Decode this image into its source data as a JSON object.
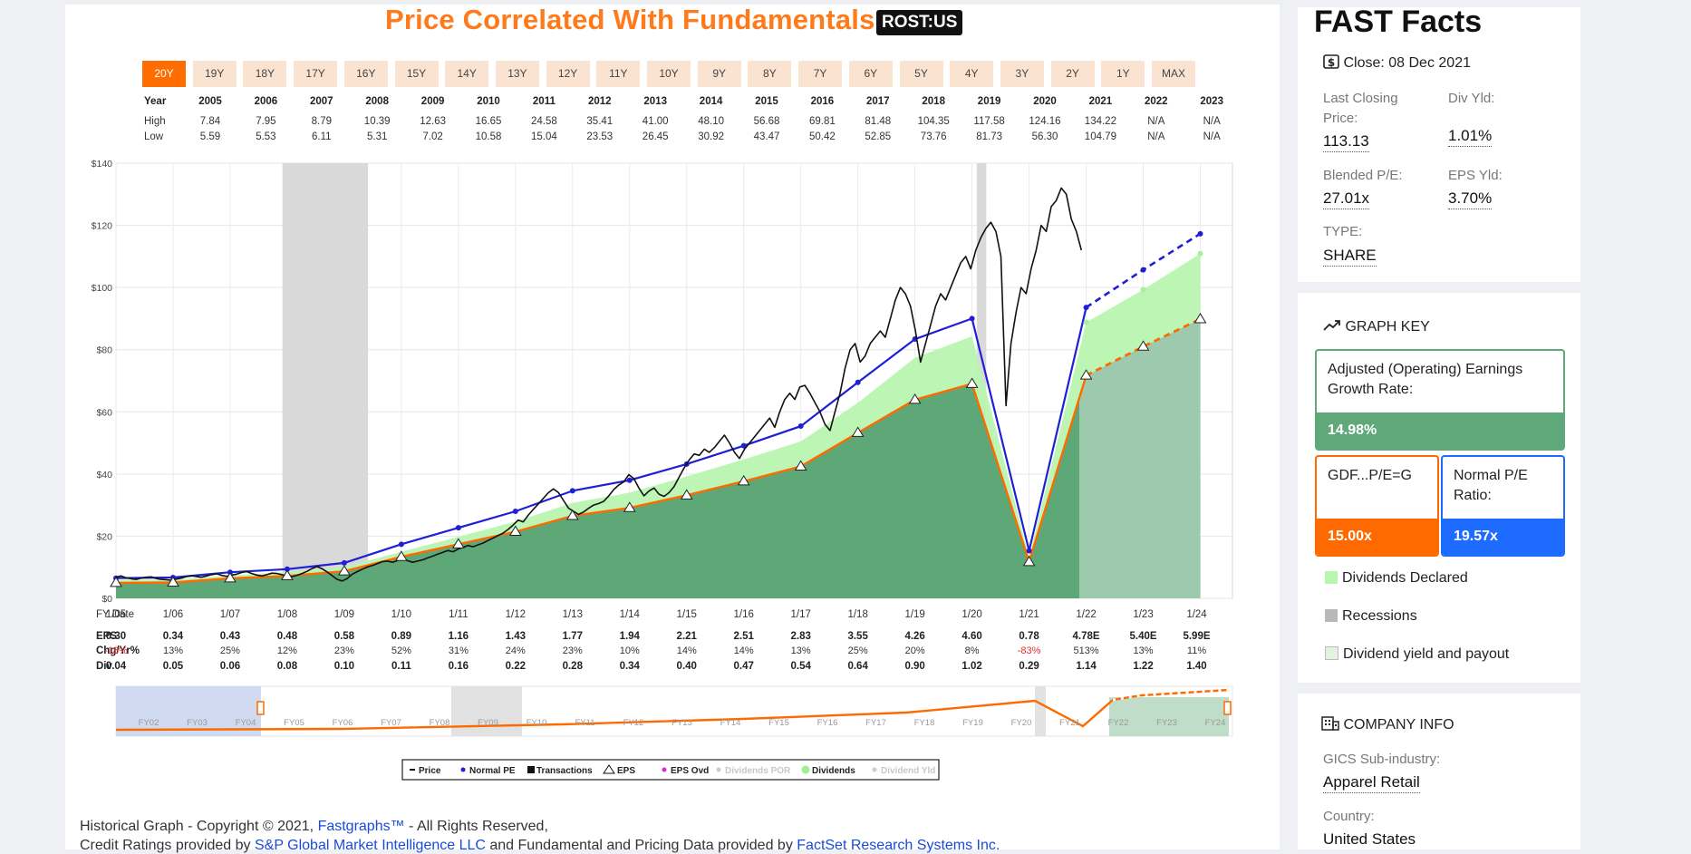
{
  "header": {
    "title": "Price Correlated With Fundamentals",
    "ticker": "ROST:US"
  },
  "range_buttons": [
    "20Y",
    "19Y",
    "18Y",
    "17Y",
    "16Y",
    "15Y",
    "14Y",
    "13Y",
    "12Y",
    "11Y",
    "10Y",
    "9Y",
    "8Y",
    "7Y",
    "6Y",
    "5Y",
    "4Y",
    "3Y",
    "2Y",
    "1Y",
    "MAX"
  ],
  "active_range": "20Y",
  "year_table": {
    "labels": {
      "year": "Year",
      "high": "High",
      "low": "Low"
    },
    "years": [
      "2005",
      "2006",
      "2007",
      "2008",
      "2009",
      "2010",
      "2011",
      "2012",
      "2013",
      "2014",
      "2015",
      "2016",
      "2017",
      "2018",
      "2019",
      "2020",
      "2021",
      "2022",
      "2023"
    ],
    "high": [
      "7.84",
      "7.95",
      "8.79",
      "10.39",
      "12.63",
      "16.65",
      "24.58",
      "35.41",
      "41.00",
      "48.10",
      "56.68",
      "69.81",
      "81.48",
      "104.35",
      "117.58",
      "124.16",
      "134.22",
      "N/A",
      "N/A"
    ],
    "low": [
      "5.59",
      "5.53",
      "6.11",
      "5.31",
      "7.02",
      "10.58",
      "15.04",
      "23.53",
      "26.45",
      "30.92",
      "43.47",
      "50.42",
      "52.85",
      "73.76",
      "81.73",
      "56.30",
      "104.79",
      "N/A",
      "N/A"
    ]
  },
  "fundamentals_table": {
    "labels": {
      "fy_date": "FY Date",
      "eps": "EPS",
      "chg": "Chg/Yr%",
      "div": "Div"
    },
    "fy_dates": [
      "1/05",
      "1/06",
      "1/07",
      "1/08",
      "1/09",
      "1/10",
      "1/11",
      "1/12",
      "1/13",
      "1/14",
      "1/15",
      "1/16",
      "1/17",
      "1/18",
      "1/19",
      "1/20",
      "1/21",
      "1/22",
      "1/23",
      "1/24"
    ],
    "eps": [
      "0.30",
      "0.34",
      "0.43",
      "0.48",
      "0.58",
      "0.89",
      "1.16",
      "1.43",
      "1.77",
      "1.94",
      "2.21",
      "2.51",
      "2.83",
      "3.55",
      "4.26",
      "4.60",
      "0.78",
      "4.78E",
      "5.40E",
      "5.99E"
    ],
    "chg": [
      "-18%",
      "13%",
      "25%",
      "12%",
      "23%",
      "52%",
      "31%",
      "24%",
      "23%",
      "10%",
      "14%",
      "14%",
      "13%",
      "25%",
      "20%",
      "8%",
      "-83%",
      "513%",
      "13%",
      "11%"
    ],
    "div": [
      "0.04",
      "0.05",
      "0.06",
      "0.08",
      "0.10",
      "0.11",
      "0.16",
      "0.22",
      "0.28",
      "0.34",
      "0.40",
      "0.47",
      "0.54",
      "0.64",
      "0.90",
      "1.02",
      "0.29",
      "1.14",
      "1.22",
      "1.40"
    ],
    "negative_color": "#e03030"
  },
  "chart_data": {
    "type": "line",
    "ylim": [
      0,
      140
    ],
    "y_ticks": [
      "$0",
      "$20",
      "$40",
      "$60",
      "$80",
      "$100",
      "$120",
      "$140"
    ],
    "x_dates": [
      "1/05",
      "1/06",
      "1/07",
      "1/08",
      "1/09",
      "1/10",
      "1/11",
      "1/12",
      "1/13",
      "1/14",
      "1/15",
      "1/16",
      "1/17",
      "1/18",
      "1/19",
      "1/20",
      "1/21",
      "1/22",
      "1/23",
      "1/24"
    ],
    "eps_value_line": [
      5.0,
      5.1,
      6.45,
      7.2,
      8.7,
      13.35,
      17.4,
      21.45,
      26.55,
      29.1,
      33.15,
      37.65,
      42.45,
      53.25,
      63.9,
      69.0,
      11.7,
      71.7,
      81.0,
      89.85
    ],
    "normal_pe_line": [
      6.5,
      6.7,
      8.4,
      9.4,
      11.4,
      17.4,
      22.7,
      28.0,
      34.6,
      38.0,
      43.2,
      49.1,
      55.4,
      69.5,
      83.4,
      90.0,
      15.3,
      93.6,
      105.7,
      117.3
    ],
    "dividend_top": [
      6.0,
      6.0,
      7.4,
      8.4,
      10.1,
      15.0,
      19.8,
      24.7,
      30.7,
      34.0,
      39.2,
      44.7,
      50.5,
      62.9,
      77.4,
      84.3,
      13.2,
      88.8,
      99.3,
      110.9
    ],
    "forecast_start_index": 17,
    "price_monthly": [
      6.8,
      7.2,
      6.6,
      6.3,
      6.1,
      6.5,
      6.8,
      6.9,
      6.4,
      6.1,
      6.0,
      5.8,
      6.2,
      6.5,
      7.0,
      7.3,
      7.0,
      6.8,
      7.2,
      7.6,
      7.9,
      7.4,
      7.1,
      7.5,
      7.8,
      8.3,
      8.6,
      8.0,
      7.5,
      7.2,
      7.6,
      8.1,
      8.0,
      7.6,
      7.2,
      7.0,
      7.4,
      8.0,
      8.7,
      9.6,
      10.2,
      9.5,
      8.5,
      7.3,
      6.1,
      5.6,
      6.4,
      7.8,
      8.6,
      9.4,
      10.1,
      10.6,
      11.2,
      11.8,
      12.0,
      11.6,
      12.2,
      12.8,
      12.1,
      11.6,
      12.0,
      12.4,
      13.0,
      13.6,
      14.2,
      14.8,
      15.4,
      15.0,
      15.8,
      16.4,
      17.0,
      16.6,
      17.2,
      17.8,
      18.6,
      19.4,
      20.2,
      21.0,
      22.2,
      23.6,
      25.2,
      24.6,
      26.8,
      28.6,
      30.4,
      32.2,
      34.0,
      35.2,
      34.0,
      31.5,
      29.0,
      28.0,
      27.0,
      27.8,
      29.0,
      30.0,
      30.5,
      31.2,
      33.0,
      35.0,
      36.5,
      37.5,
      39.8,
      38.5,
      35.5,
      33.0,
      34.5,
      35.5,
      33.5,
      32.8,
      34.0,
      36.0,
      39.0,
      42.0,
      44.5,
      46.5,
      46.0,
      48.0,
      47.0,
      48.5,
      50.5,
      52.5,
      50.0,
      47.0,
      45.0,
      48.0,
      50.0,
      52.0,
      54.0,
      56.0,
      58.0,
      55.0,
      60.0,
      64.0,
      66.0,
      64.0,
      68.0,
      68.5,
      66.0,
      63.0,
      60.0,
      56.0,
      54.0,
      60.0,
      66.0,
      74.0,
      80.0,
      82.0,
      76.0,
      78.0,
      82.0,
      84.0,
      86.0,
      84.0,
      90.0,
      96.0,
      100.0,
      98.0,
      94.0,
      86.0,
      76.0,
      82.0,
      88.0,
      94.0,
      98.0,
      96.0,
      100.0,
      104.0,
      108.0,
      110.0,
      106.0,
      112.0,
      116.0,
      119.0,
      121.0,
      118.0,
      110.0,
      62.0,
      82.0,
      92.0,
      100.0,
      98.0,
      106.0,
      112.0,
      120.0,
      118.0,
      126.0,
      128.0,
      132.0,
      130.0,
      122.0,
      118.0,
      112.0
    ],
    "price_start": "1/05",
    "price_end": "12/21",
    "recessions": [
      [
        "12/07",
        "6/09"
      ],
      [
        "2/20",
        "4/20"
      ]
    ],
    "legend": [
      "Price",
      "Normal PE",
      "Transactions",
      "EPS",
      "EPS Ovd",
      "Dividends POR",
      "Dividends",
      "Dividend Yld"
    ],
    "navigator_labels": [
      "FY02",
      "FY03",
      "FY04",
      "FY05",
      "FY06",
      "FY07",
      "FY08",
      "FY09",
      "FY10",
      "FY11",
      "FY12",
      "FY13",
      "FY14",
      "FY15",
      "FY16",
      "FY17",
      "FY18",
      "FY19",
      "FY20",
      "FY21",
      "FY22",
      "FY23",
      "FY24"
    ],
    "colors": {
      "price": "#111111",
      "normal_pe": "#1f1fd6",
      "eps": "#ff6a00",
      "dividends": "#b9f5b0",
      "area": "#5ea878",
      "forecast_area": "#9dc9ad",
      "recession": "#d9d9d9"
    }
  },
  "footer": {
    "line1_pre": "Historical Graph - Copyright © 2021, ",
    "line1_link": "Fastgraphs™",
    "line1_post": " - All Rights Reserved,",
    "line2_pre": "Credit Ratings provided by ",
    "line2_link1": "S&P Global Market Intelligence LLC",
    "line2_mid": " and Fundamental and Pricing Data provided by ",
    "line2_link2": "FactSet Research Systems Inc."
  },
  "fast_facts": {
    "title": "FAST Facts",
    "close_label": "Close: 08 Dec 2021",
    "last_closing_label": "Last Closing Price:",
    "last_closing_value": "113.13",
    "div_yld_label": "Div Yld:",
    "div_yld_value": "1.01%",
    "blended_pe_label": "Blended P/E:",
    "blended_pe_value": "27.01x",
    "eps_yld_label": "EPS Yld:",
    "eps_yld_value": "3.70%",
    "type_label": "TYPE:",
    "type_value": "SHARE"
  },
  "graph_key": {
    "title": "GRAPH KEY",
    "growth_label": "Adjusted (Operating) Earnings Growth Rate:",
    "growth_value": "14.98%",
    "gdf_label": "GDF...P/E=G",
    "gdf_value": "15.00x",
    "normal_pe_label": "Normal P/E Ratio:",
    "normal_pe_value": "19.57x",
    "dividends_declared": "Dividends Declared",
    "recessions": "Recessions",
    "dividend_yield_payout": "Dividend yield and payout",
    "colors": {
      "growth": "#5fa87a",
      "gdf": "#ff6a00",
      "normal_pe": "#1e6bff",
      "dividends_declared": "#b9f5b0",
      "recessions": "#b8b8b8",
      "dividend_yield_payout": "#e3f3e0"
    }
  },
  "company_info": {
    "title": "COMPANY INFO",
    "gics_label": "GICS Sub-industry:",
    "gics_value": "Apparel Retail",
    "country_label": "Country:",
    "country_value": "United States"
  }
}
